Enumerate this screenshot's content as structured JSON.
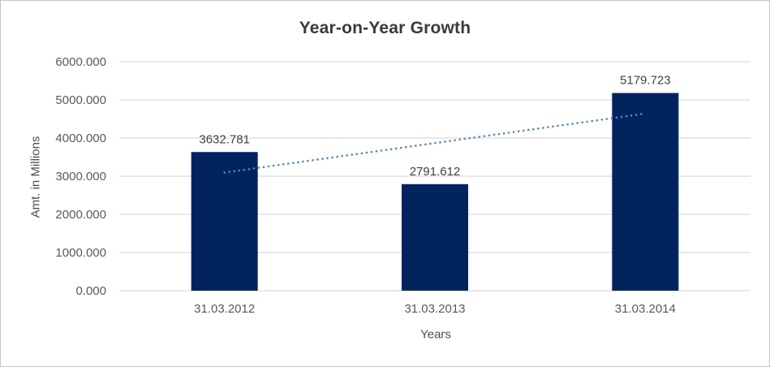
{
  "chart_data": {
    "type": "bar",
    "title": "Year-on-Year Growth",
    "xlabel": "Years",
    "ylabel": "Amt. in Millions",
    "categories": [
      "31.03.2012",
      "31.03.2013",
      "31.03.2014"
    ],
    "values": [
      3632.781,
      2791.612,
      5179.723
    ],
    "value_labels": [
      "3632.781",
      "2791.612",
      "5179.723"
    ],
    "ylim": [
      0,
      6000
    ],
    "ytick_interval": 1000,
    "ytick_labels": [
      "0.000",
      "1000.000",
      "2000.000",
      "3000.000",
      "4000.000",
      "5000.000",
      "6000.000"
    ],
    "grid": true,
    "legend": false,
    "colors": {
      "bar": "#02245E",
      "gridline": "#D9D9D9",
      "trendline": "#4E87C8",
      "title_text": "#3A3A3A",
      "axis_text": "#595959",
      "data_label_text": "#404040"
    },
    "trendline": {
      "type": "linear",
      "style": "dotted",
      "start_value": 3094.6,
      "end_value": 4641.5
    }
  }
}
